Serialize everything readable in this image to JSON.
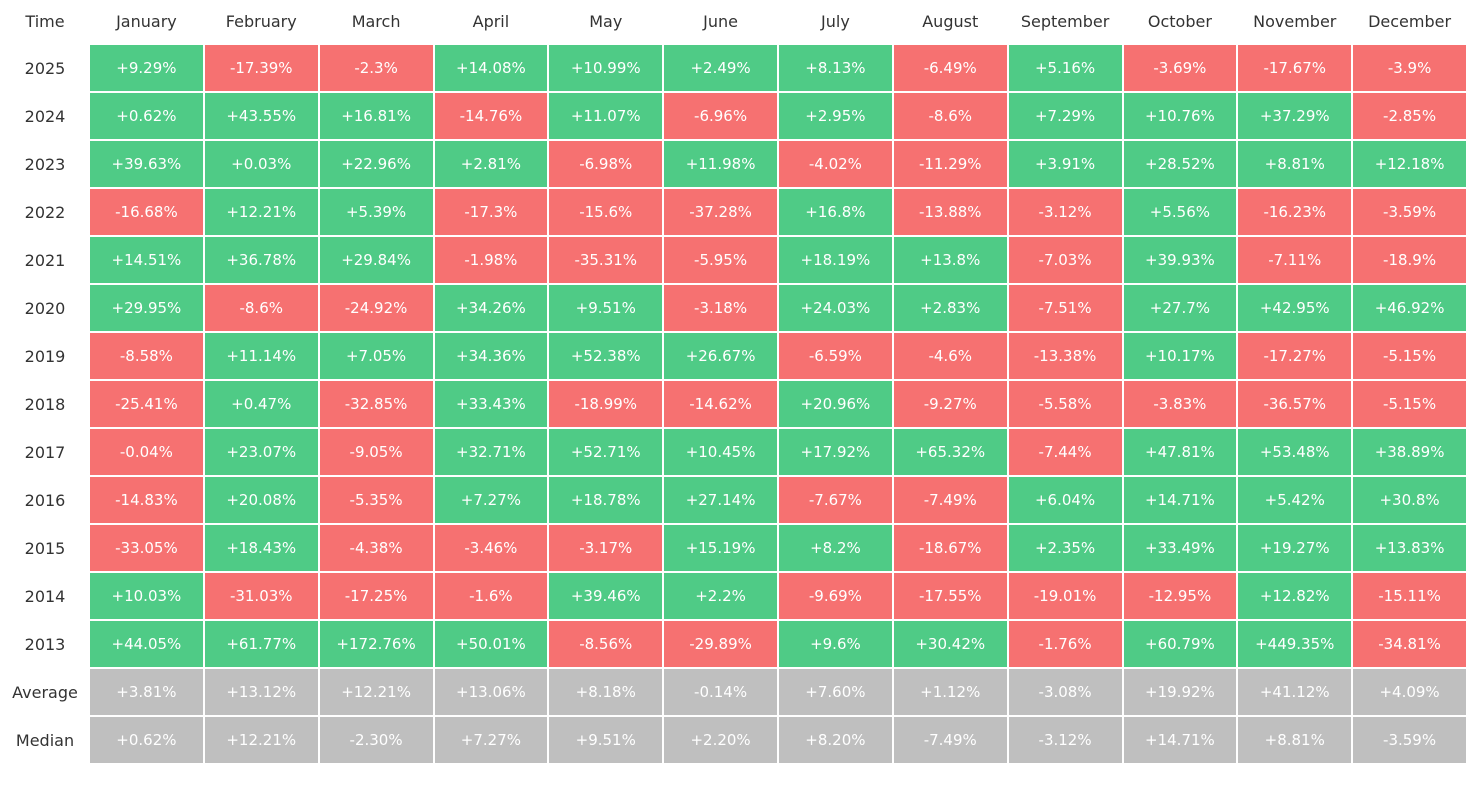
{
  "table": {
    "header": [
      "Time",
      "January",
      "February",
      "March",
      "April",
      "May",
      "June",
      "July",
      "August",
      "September",
      "October",
      "November",
      "December"
    ],
    "rows": [
      [
        "2025",
        "+9.29%",
        "-17.39%",
        "-2.3%",
        "+14.08%",
        "+10.99%",
        "+2.49%",
        "+8.13%",
        "-6.49%",
        "+5.16%",
        "-3.69%",
        "-17.67%",
        "-3.9%"
      ],
      [
        "2024",
        "+0.62%",
        "+43.55%",
        "+16.81%",
        "-14.76%",
        "+11.07%",
        "-6.96%",
        "+2.95%",
        "-8.6%",
        "+7.29%",
        "+10.76%",
        "+37.29%",
        "-2.85%"
      ],
      [
        "2023",
        "+39.63%",
        "+0.03%",
        "+22.96%",
        "+2.81%",
        "-6.98%",
        "+11.98%",
        "-4.02%",
        "-11.29%",
        "+3.91%",
        "+28.52%",
        "+8.81%",
        "+12.18%"
      ],
      [
        "2022",
        "-16.68%",
        "+12.21%",
        "+5.39%",
        "-17.3%",
        "-15.6%",
        "-37.28%",
        "+16.8%",
        "-13.88%",
        "-3.12%",
        "+5.56%",
        "-16.23%",
        "-3.59%"
      ],
      [
        "2021",
        "+14.51%",
        "+36.78%",
        "+29.84%",
        "-1.98%",
        "-35.31%",
        "-5.95%",
        "+18.19%",
        "+13.8%",
        "-7.03%",
        "+39.93%",
        "-7.11%",
        "-18.9%"
      ],
      [
        "2020",
        "+29.95%",
        "-8.6%",
        "-24.92%",
        "+34.26%",
        "+9.51%",
        "-3.18%",
        "+24.03%",
        "+2.83%",
        "-7.51%",
        "+27.7%",
        "+42.95%",
        "+46.92%"
      ],
      [
        "2019",
        "-8.58%",
        "+11.14%",
        "+7.05%",
        "+34.36%",
        "+52.38%",
        "+26.67%",
        "-6.59%",
        "-4.6%",
        "-13.38%",
        "+10.17%",
        "-17.27%",
        "-5.15%"
      ],
      [
        "2018",
        "-25.41%",
        "+0.47%",
        "-32.85%",
        "+33.43%",
        "-18.99%",
        "-14.62%",
        "+20.96%",
        "-9.27%",
        "-5.58%",
        "-3.83%",
        "-36.57%",
        "-5.15%"
      ],
      [
        "2017",
        "-0.04%",
        "+23.07%",
        "-9.05%",
        "+32.71%",
        "+52.71%",
        "+10.45%",
        "+17.92%",
        "+65.32%",
        "-7.44%",
        "+47.81%",
        "+53.48%",
        "+38.89%"
      ],
      [
        "2016",
        "-14.83%",
        "+20.08%",
        "-5.35%",
        "+7.27%",
        "+18.78%",
        "+27.14%",
        "-7.67%",
        "-7.49%",
        "+6.04%",
        "+14.71%",
        "+5.42%",
        "+30.8%"
      ],
      [
        "2015",
        "-33.05%",
        "+18.43%",
        "-4.38%",
        "-3.46%",
        "-3.17%",
        "+15.19%",
        "+8.2%",
        "-18.67%",
        "+2.35%",
        "+33.49%",
        "+19.27%",
        "+13.83%"
      ],
      [
        "2014",
        "+10.03%",
        "-31.03%",
        "-17.25%",
        "-1.6%",
        "+39.46%",
        "+2.2%",
        "-9.69%",
        "-17.55%",
        "-19.01%",
        "-12.95%",
        "+12.82%",
        "-15.11%"
      ],
      [
        "2013",
        "+44.05%",
        "+61.77%",
        "+172.76%",
        "+50.01%",
        "-8.56%",
        "-29.89%",
        "+9.6%",
        "+30.42%",
        "-1.76%",
        "+60.79%",
        "+449.35%",
        "-34.81%"
      ]
    ],
    "summary": [
      [
        "Average",
        "+3.81%",
        "+13.12%",
        "+12.21%",
        "+13.06%",
        "+8.18%",
        "-0.14%",
        "+7.60%",
        "+1.12%",
        "-3.08%",
        "+19.92%",
        "+41.12%",
        "+4.09%"
      ],
      [
        "Median",
        "+0.62%",
        "+12.21%",
        "-2.30%",
        "+7.27%",
        "+9.51%",
        "+2.20%",
        "+8.20%",
        "-7.49%",
        "-3.12%",
        "+14.71%",
        "+8.81%",
        "-3.59%"
      ]
    ]
  },
  "colors": {
    "positive": "#4fcb86",
    "negative": "#f67171",
    "summary": "#bfbfbf"
  }
}
